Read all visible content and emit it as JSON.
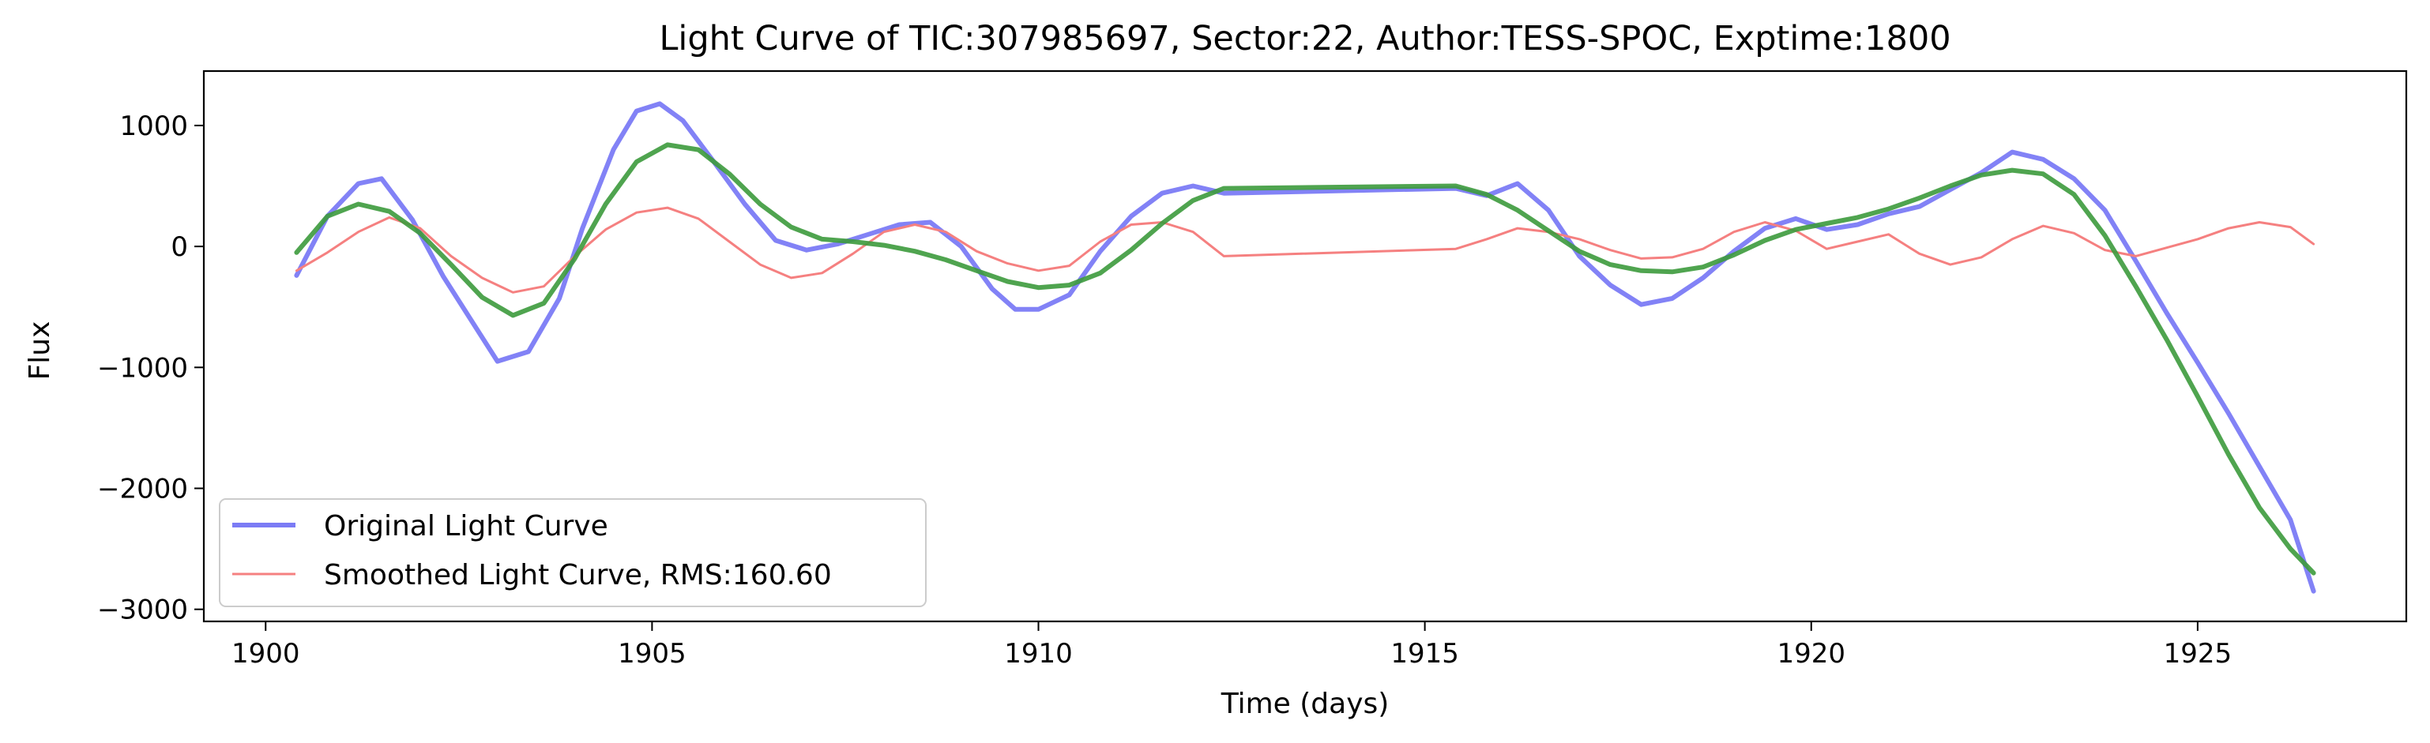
{
  "chart_data": {
    "type": "line",
    "title": "Light Curve of TIC:307985697, Sector:22, Author:TESS-SPOC, Exptime:1800",
    "xlabel": "Time (days)",
    "ylabel": "Flux",
    "xlim": [
      1899.2,
      1927.7
    ],
    "ylim": [
      -3100,
      1450
    ],
    "xticks": [
      1900,
      1905,
      1910,
      1915,
      1920,
      1925
    ],
    "xtick_labels": [
      "1900",
      "1905",
      "1910",
      "1915",
      "1920",
      "1925"
    ],
    "yticks": [
      1000,
      0,
      -1000,
      -2000,
      -3000
    ],
    "ytick_labels": [
      "1000",
      "0",
      "−1000",
      "−2000",
      "−3000"
    ],
    "grid": false,
    "legend_position": "lower-left",
    "series": [
      {
        "name": "Original Light Curve",
        "color": "#7b7bf5",
        "x": [
          1900.4,
          1900.8,
          1901.2,
          1901.5,
          1901.9,
          1902.3,
          1902.7,
          1903.0,
          1903.4,
          1903.8,
          1904.1,
          1904.5,
          1904.8,
          1905.1,
          1905.4,
          1905.8,
          1906.2,
          1906.6,
          1907.0,
          1907.4,
          1907.8,
          1908.2,
          1908.6,
          1909.0,
          1909.4,
          1909.7,
          1910.0,
          1910.4,
          1910.8,
          1911.2,
          1911.6,
          1912.0,
          1912.4,
          1915.4,
          1915.8,
          1916.2,
          1916.6,
          1917.0,
          1917.4,
          1917.8,
          1918.2,
          1918.6,
          1919.0,
          1919.4,
          1919.8,
          1920.2,
          1920.6,
          1921.0,
          1921.4,
          1921.8,
          1922.2,
          1922.6,
          1923.0,
          1923.4,
          1923.8,
          1924.2,
          1924.6,
          1925.0,
          1925.4,
          1925.8,
          1926.2,
          1926.5
        ],
        "y": [
          -240,
          250,
          520,
          560,
          220,
          -250,
          -650,
          -950,
          -870,
          -430,
          150,
          800,
          1120,
          1180,
          1040,
          700,
          350,
          50,
          -30,
          20,
          100,
          180,
          200,
          0,
          -350,
          -520,
          -520,
          -400,
          -40,
          250,
          440,
          500,
          440,
          480,
          420,
          520,
          300,
          -80,
          -320,
          -480,
          -430,
          -260,
          -40,
          150,
          230,
          140,
          180,
          270,
          330,
          470,
          610,
          780,
          720,
          560,
          300,
          -120,
          -550,
          -960,
          -1380,
          -1820,
          -2260,
          -2850
        ]
      },
      {
        "name": "Smoothed Light Curve, RMS:160.60",
        "color": "#f58080",
        "x": [
          1900.4,
          1900.8,
          1901.2,
          1901.6,
          1902.0,
          1902.4,
          1902.8,
          1903.2,
          1903.6,
          1904.0,
          1904.4,
          1904.8,
          1905.2,
          1905.6,
          1906.0,
          1906.4,
          1906.8,
          1907.2,
          1907.6,
          1908.0,
          1908.4,
          1908.8,
          1909.2,
          1909.6,
          1910.0,
          1910.4,
          1910.8,
          1911.2,
          1911.6,
          1912.0,
          1912.4,
          1915.4,
          1915.8,
          1916.2,
          1916.6,
          1917.0,
          1917.4,
          1917.8,
          1918.2,
          1918.6,
          1919.0,
          1919.4,
          1919.8,
          1920.2,
          1920.6,
          1921.0,
          1921.4,
          1921.8,
          1922.2,
          1922.6,
          1923.0,
          1923.4,
          1923.8,
          1924.2,
          1924.6,
          1925.0,
          1925.4,
          1925.8,
          1926.2,
          1926.5
        ],
        "y": [
          -200,
          -50,
          120,
          240,
          150,
          -80,
          -260,
          -380,
          -330,
          -80,
          140,
          280,
          320,
          230,
          40,
          -150,
          -260,
          -220,
          -60,
          120,
          180,
          120,
          -40,
          -140,
          -200,
          -160,
          40,
          180,
          200,
          120,
          -80,
          -20,
          60,
          150,
          120,
          60,
          -30,
          -100,
          -90,
          -20,
          120,
          200,
          130,
          -20,
          40,
          100,
          -60,
          -150,
          -90,
          60,
          170,
          110,
          -30,
          -80,
          -10,
          60,
          150,
          200,
          160,
          20
        ]
      },
      {
        "name": "",
        "color": "#3c9a3c",
        "x": [
          1900.4,
          1900.8,
          1901.2,
          1901.6,
          1902.0,
          1902.4,
          1902.8,
          1903.2,
          1903.6,
          1904.0,
          1904.4,
          1904.8,
          1905.2,
          1905.6,
          1906.0,
          1906.4,
          1906.8,
          1907.2,
          1907.6,
          1908.0,
          1908.4,
          1908.8,
          1909.2,
          1909.6,
          1910.0,
          1910.4,
          1910.8,
          1911.2,
          1911.6,
          1912.0,
          1912.4,
          1915.4,
          1915.8,
          1916.2,
          1916.6,
          1917.0,
          1917.4,
          1917.8,
          1918.2,
          1918.6,
          1919.0,
          1919.4,
          1919.8,
          1920.2,
          1920.6,
          1921.0,
          1921.4,
          1921.8,
          1922.2,
          1922.6,
          1923.0,
          1923.4,
          1923.8,
          1924.2,
          1924.6,
          1925.0,
          1925.4,
          1925.8,
          1926.2,
          1926.5
        ],
        "y": [
          -50,
          250,
          350,
          290,
          110,
          -150,
          -420,
          -570,
          -470,
          -100,
          350,
          700,
          840,
          800,
          600,
          350,
          160,
          60,
          40,
          10,
          -40,
          -110,
          -200,
          -290,
          -340,
          -320,
          -220,
          -30,
          190,
          380,
          480,
          500,
          430,
          300,
          130,
          -40,
          -150,
          -200,
          -210,
          -170,
          -70,
          50,
          140,
          190,
          240,
          310,
          400,
          500,
          590,
          630,
          600,
          430,
          90,
          -330,
          -770,
          -1240,
          -1720,
          -2160,
          -2500,
          -2700
        ]
      }
    ]
  }
}
